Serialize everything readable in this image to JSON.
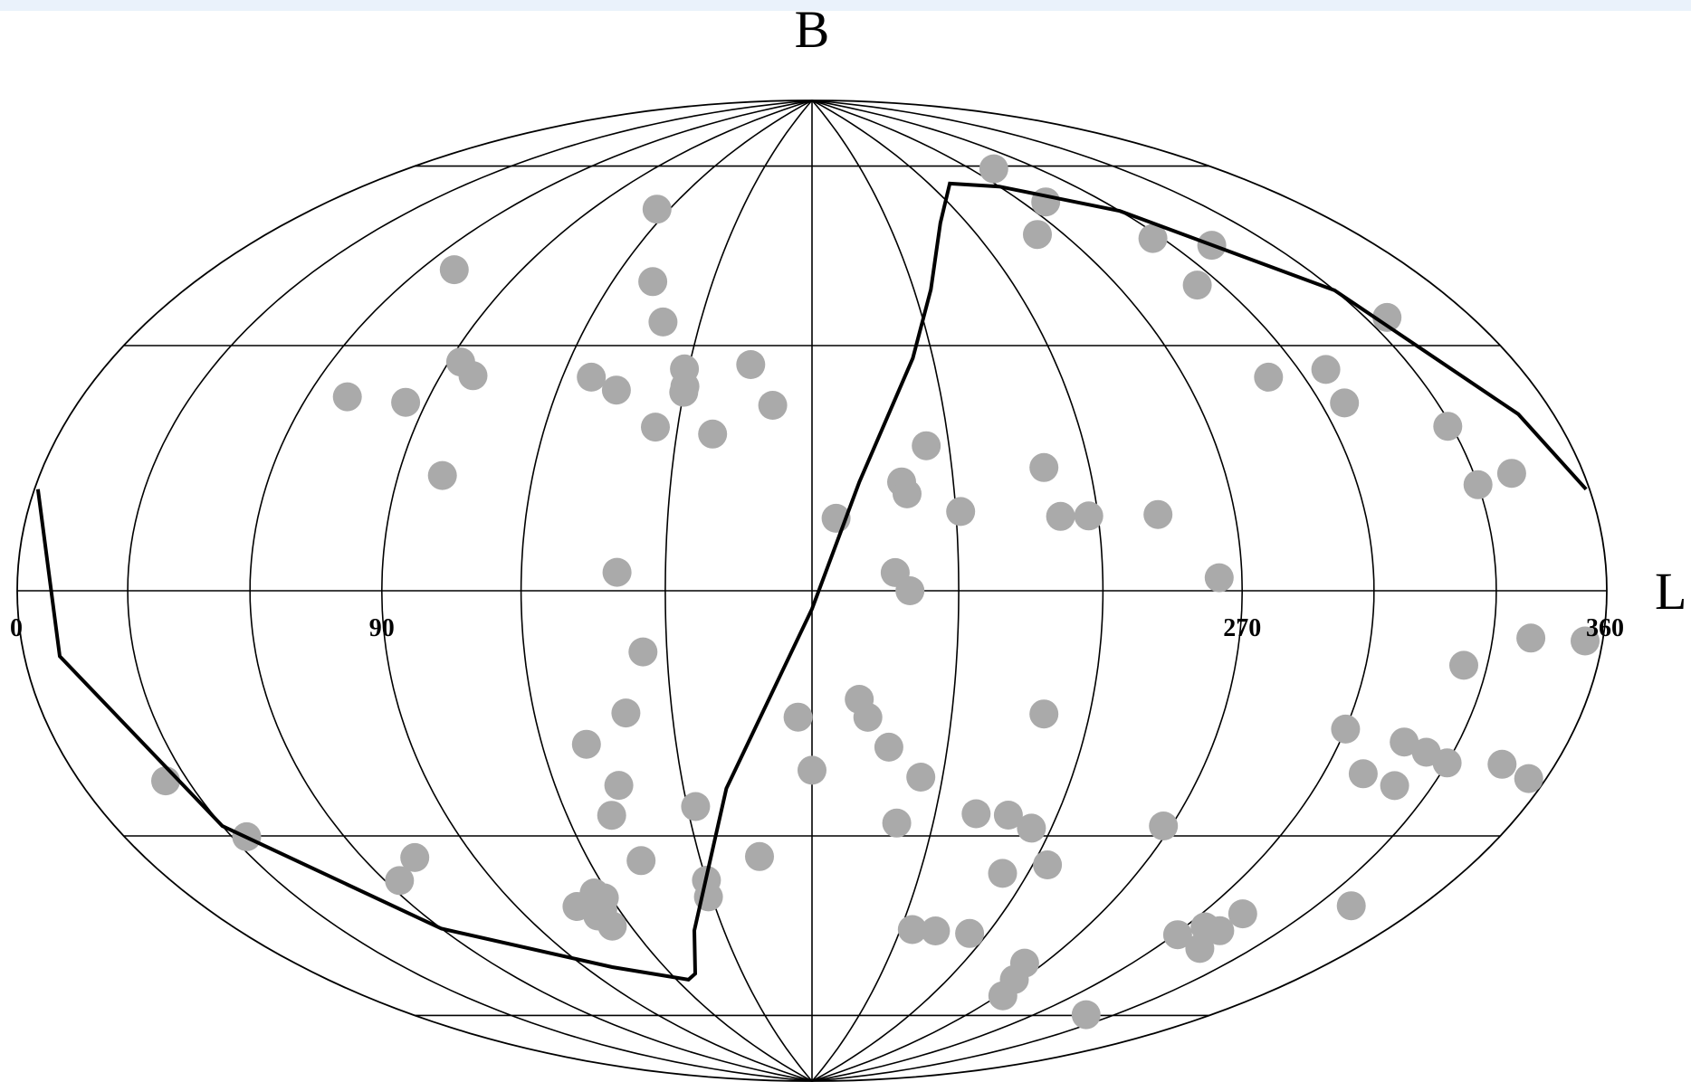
{
  "chart_data": {
    "type": "scatter",
    "projection": "aitoff-hammer",
    "xlabel": "L",
    "ylabel": "B",
    "xlim": [
      0,
      360
    ],
    "ylim": [
      -90,
      90
    ],
    "x_ticks": [
      "0",
      "90",
      "270",
      "360"
    ],
    "x_tick_values": [
      0,
      90,
      270,
      360
    ],
    "parallels_deg": [
      -60,
      -30,
      0,
      30,
      60
    ],
    "meridians_deg": [
      0,
      30,
      60,
      90,
      120,
      150,
      180,
      210,
      240,
      270,
      300,
      330,
      360
    ],
    "grid": true,
    "marker_color": "#aaaaaa",
    "line_color": "#000000",
    "curve": {
      "x": [
        1,
        10,
        30,
        60,
        100,
        125,
        130,
        140,
        160,
        180,
        190,
        205,
        215,
        230,
        250,
        270,
        300,
        330,
        350,
        359
      ],
      "y": [
        12,
        -8,
        -32,
        -52,
        -63,
        -67,
        -66,
        -58,
        -33,
        -3,
        18,
        39,
        51,
        63,
        70,
        68,
        60,
        42,
        22,
        12
      ]
    },
    "series": [
      {
        "points": [
          [
            115,
            65
          ],
          [
            70,
            50
          ],
          [
            132,
            52
          ],
          [
            140,
            45
          ],
          [
            93,
            36
          ],
          [
            98,
            34
          ],
          [
            127,
            35
          ],
          [
            149,
            37
          ],
          [
            134,
            33
          ],
          [
            150,
            34
          ],
          [
            150,
            33
          ],
          [
            165,
            38
          ],
          [
            171,
            31
          ],
          [
            70,
            29
          ],
          [
            85,
            29
          ],
          [
            145,
            27
          ],
          [
            158,
            26
          ],
          [
            100,
            18
          ],
          [
            205,
            24
          ],
          [
            199,
            18
          ],
          [
            200,
            16
          ],
          [
            211,
            13
          ],
          [
            230,
            20
          ],
          [
            238,
            12
          ],
          [
            185,
            12
          ],
          [
            140,
            3
          ],
          [
            197,
            3
          ],
          [
            200,
            0
          ],
          [
            253,
            12
          ],
          [
            232,
            12
          ],
          [
            261,
            59
          ],
          [
            279,
            64
          ],
          [
            281,
            71
          ],
          [
            297,
            55
          ],
          [
            312,
            52
          ],
          [
            293,
            47
          ],
          [
            336,
            37
          ],
          [
            291,
            32
          ],
          [
            307,
            32
          ],
          [
            306,
            27
          ],
          [
            329,
            22
          ],
          [
            330,
            14
          ],
          [
            340,
            15
          ],
          [
            265,
            2
          ],
          [
            145,
            -10
          ],
          [
            140,
            -20
          ],
          [
            340,
            -6
          ],
          [
            324,
            -10
          ],
          [
            355,
            -6
          ],
          [
            300,
            -20
          ],
          [
            316,
            -21
          ],
          [
            323,
            -22
          ],
          [
            310,
            -26
          ],
          [
            330,
            -23
          ],
          [
            320,
            -27
          ],
          [
            355,
            -23
          ],
          [
            345,
            -22
          ],
          [
            130,
            -25
          ],
          [
            135,
            -32
          ],
          [
            131,
            -37
          ],
          [
            152,
            -36
          ],
          [
            177,
            -21
          ],
          [
            190,
            -18
          ],
          [
            192,
            -21
          ],
          [
            197,
            -26
          ],
          [
            180,
            -30
          ],
          [
            230,
            -20
          ],
          [
            205,
            -31
          ],
          [
            201,
            -39
          ],
          [
            220,
            -37
          ],
          [
            228,
            -37
          ],
          [
            235,
            -39
          ],
          [
            268,
            -37
          ],
          [
            24,
            -25
          ],
          [
            34,
            -34
          ],
          [
            64,
            -44
          ],
          [
            74,
            -41
          ],
          [
            134,
            -45
          ],
          [
            108,
            -52
          ],
          [
            112,
            -52
          ],
          [
            115,
            -53
          ],
          [
            118,
            -51
          ],
          [
            112,
            -54
          ],
          [
            114,
            -56
          ],
          [
            116,
            -50
          ],
          [
            149,
            -52
          ],
          [
            150,
            -49
          ],
          [
            166,
            -45
          ],
          [
            233,
            -47
          ],
          [
            244,
            -45
          ],
          [
            214,
            -58
          ],
          [
            222,
            -58
          ],
          [
            234,
            -58
          ],
          [
            263,
            -62
          ],
          [
            267,
            -65
          ],
          [
            272,
            -68
          ],
          [
            314,
            -54
          ],
          [
            312,
            -51
          ],
          [
            312,
            -48
          ],
          [
            340,
            -43
          ],
          [
            301,
            -53
          ],
          [
            306,
            -51
          ],
          [
            320,
            -67
          ]
        ]
      }
    ]
  }
}
